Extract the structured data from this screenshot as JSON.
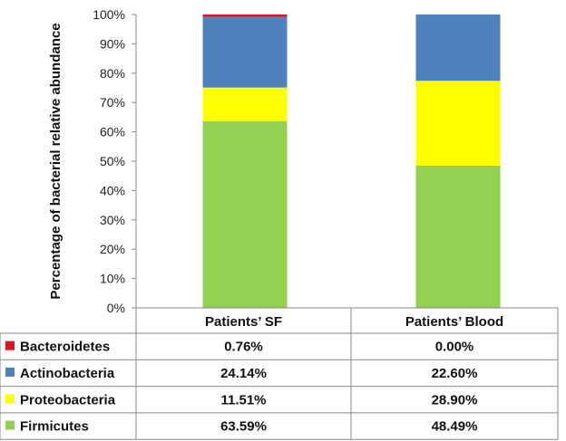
{
  "chart_data": {
    "type": "bar",
    "stacked": true,
    "ylabel": "Percentage of bacterial relative abundance",
    "ylim": [
      0,
      100
    ],
    "y_ticks": [
      "0%",
      "10%",
      "20%",
      "30%",
      "40%",
      "50%",
      "60%",
      "70%",
      "80%",
      "90%",
      "100%"
    ],
    "categories": [
      "Patients’ SF",
      "Patients’ Blood"
    ],
    "series": [
      {
        "name": "Firmicutes",
        "color": "#92D050",
        "values": [
          63.59,
          48.49
        ],
        "labels": [
          "63.59%",
          "48.49%"
        ]
      },
      {
        "name": "Proteobacteria",
        "color": "#FFFF00",
        "values": [
          11.51,
          28.9
        ],
        "labels": [
          "11.51%",
          "28.90%"
        ]
      },
      {
        "name": "Actinobacteria",
        "color": "#4F81BD",
        "values": [
          24.14,
          22.6
        ],
        "labels": [
          "24.14%",
          "22.60%"
        ]
      },
      {
        "name": "Bacteroidetes",
        "color": "#E0141E",
        "values": [
          0.76,
          0.0
        ],
        "labels": [
          "0.76%",
          "0.00%"
        ]
      }
    ],
    "legend_position": "bottom-table",
    "grid": false
  }
}
